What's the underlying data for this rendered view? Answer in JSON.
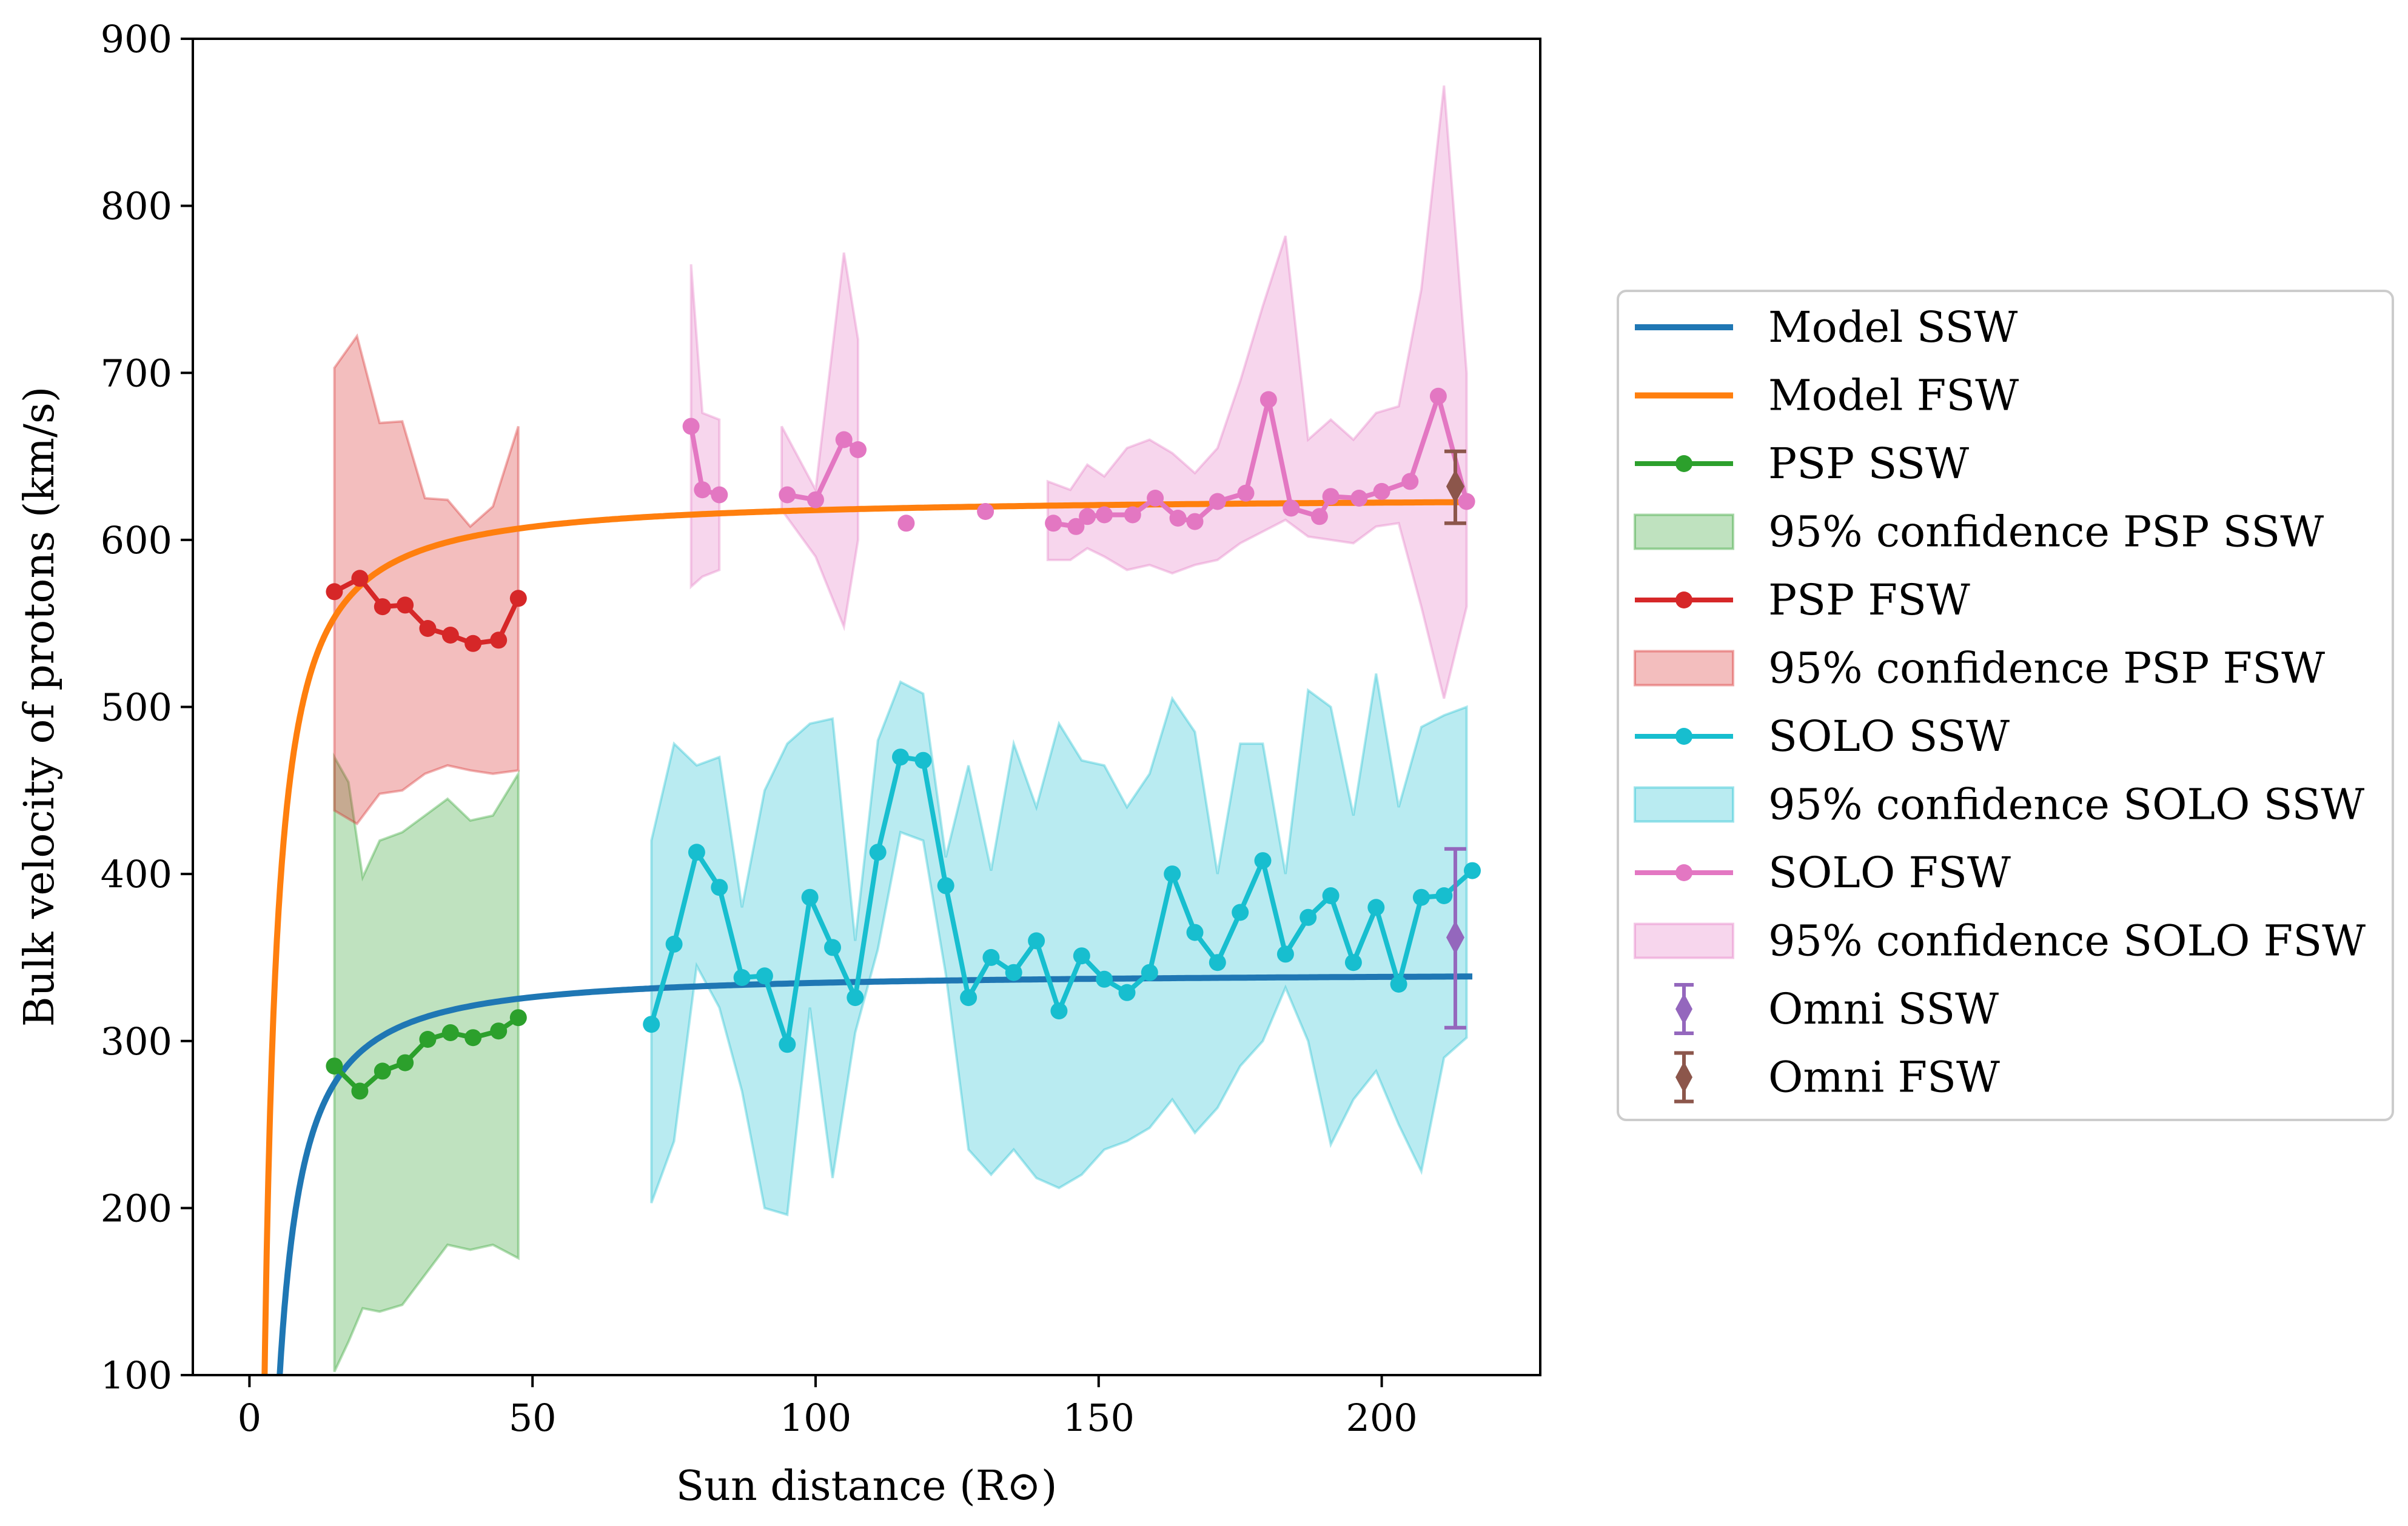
{
  "chart_data": {
    "type": "line",
    "title": "",
    "xlabel": "Sun distance (R⊙)",
    "ylabel": "Bulk velocity of protons (km/s)",
    "xlim": [
      -10,
      228
    ],
    "ylim": [
      100,
      900
    ],
    "xticks": [
      0,
      50,
      100,
      150,
      200
    ],
    "yticks": [
      100,
      200,
      300,
      400,
      500,
      600,
      700,
      800,
      900
    ],
    "grid": false,
    "legend_position": "outside-right",
    "legend": [
      {
        "label": "Model SSW",
        "kind": "line",
        "color": "#1f77b4"
      },
      {
        "label": "Model FSW",
        "kind": "line",
        "color": "#ff7f0e"
      },
      {
        "label": "PSP SSW",
        "kind": "marker-line",
        "color": "#2ca02c"
      },
      {
        "label": "95% confidence PSP SSW",
        "kind": "patch",
        "color": "#2ca02c"
      },
      {
        "label": "PSP FSW",
        "kind": "marker-line",
        "color": "#d62728"
      },
      {
        "label": "95% confidence PSP FSW",
        "kind": "patch",
        "color": "#d62728"
      },
      {
        "label": "SOLO SSW",
        "kind": "marker-line",
        "color": "#17becf"
      },
      {
        "label": "95% confidence SOLO SSW",
        "kind": "patch",
        "color": "#17becf"
      },
      {
        "label": "SOLO FSW",
        "kind": "marker-line",
        "color": "#e377c2"
      },
      {
        "label": "95% confidence SOLO FSW",
        "kind": "patch",
        "color": "#e377c2"
      },
      {
        "label": "Omni SSW",
        "kind": "errorbar",
        "color": "#9467bd"
      },
      {
        "label": "Omni FSW",
        "kind": "errorbar",
        "color": "#8c564b"
      }
    ],
    "models": [
      {
        "name": "Model SSW",
        "color": "#1f77b4",
        "vinf": 341,
        "r0": 4.05,
        "k": 1.25,
        "xmax": 216
      },
      {
        "name": "Model FSW",
        "color": "#ff7f0e",
        "vinf": 626,
        "r0": 2.3,
        "k": 1.15,
        "xmax": 216
      }
    ],
    "bands": [
      {
        "name": "95% confidence PSP SSW",
        "color": "#2ca02c",
        "segments": [
          {
            "x": [
              15,
              17.5,
              20,
              23,
              27,
              31,
              35,
              39,
              43,
              47.5
            ],
            "lower": [
              102,
              120,
              140,
              138,
              142,
              160,
              178,
              175,
              178,
              170
            ],
            "upper": [
              470,
              455,
              398,
              420,
              425,
              435,
              445,
              432,
              435,
              460
            ]
          }
        ]
      },
      {
        "name": "95% confidence PSP FSW",
        "color": "#d62728",
        "segments": [
          {
            "x": [
              15,
              19,
              23,
              27,
              31,
              35,
              39,
              43,
              47.5
            ],
            "lower": [
              438,
              430,
              448,
              450,
              460,
              465,
              462,
              460,
              462
            ],
            "upper": [
              703,
              722,
              670,
              671,
              625,
              624,
              608,
              620,
              668
            ]
          }
        ]
      },
      {
        "name": "95% confidence SOLO SSW",
        "color": "#17becf",
        "segments": [
          {
            "x": [
              71,
              75,
              79,
              83,
              87,
              91,
              95,
              99,
              103,
              107,
              111,
              115,
              119,
              123,
              127,
              131,
              135,
              139,
              143,
              147,
              151,
              155,
              159,
              163,
              167,
              171,
              175,
              179,
              183,
              187,
              191,
              195,
              199,
              203,
              207,
              211,
              215
            ],
            "lower": [
              203,
              240,
              345,
              320,
              270,
              200,
              196,
              320,
              218,
              305,
              355,
              425,
              420,
              340,
              235,
              220,
              235,
              218,
              212,
              220,
              235,
              240,
              248,
              265,
              245,
              260,
              285,
              300,
              332,
              300,
              238,
              265,
              282,
              250,
              222,
              290,
              302
            ],
            "upper": [
              420,
              478,
              465,
              470,
              380,
              450,
              478,
              490,
              493,
              360,
              480,
              515,
              508,
              410,
              465,
              402,
              478,
              440,
              490,
              468,
              465,
              440,
              460,
              505,
              485,
              400,
              478,
              478,
              400,
              510,
              500,
              435,
              520,
              440,
              488,
              495,
              500
            ]
          }
        ]
      },
      {
        "name": "95% confidence SOLO FSW",
        "color": "#e377c2",
        "segments": [
          {
            "x": [
              78,
              80,
              83
            ],
            "lower": [
              572,
              578,
              582
            ],
            "upper": [
              765,
              676,
              672
            ]
          },
          {
            "x": [
              94,
              100,
              105,
              107.5
            ],
            "lower": [
              618,
              590,
              548,
              600
            ],
            "upper": [
              668,
              630,
              772,
              720
            ]
          },
          {
            "x": [
              141,
              145,
              148,
              151,
              155,
              159,
              163,
              167,
              171,
              175,
              179,
              183,
              187,
              191,
              195,
              199,
              203,
              207,
              211,
              215
            ],
            "lower": [
              588,
              588,
              595,
              590,
              582,
              585,
              580,
              585,
              588,
              598,
              605,
              612,
              602,
              600,
              598,
              608,
              610,
              560,
              505,
              560
            ],
            "upper": [
              635,
              630,
              645,
              638,
              655,
              660,
              652,
              640,
              655,
              695,
              740,
              782,
              660,
              672,
              660,
              676,
              680,
              750,
              872,
              700
            ]
          }
        ]
      }
    ],
    "series": [
      {
        "name": "PSP SSW",
        "color": "#2ca02c",
        "x": [
          15,
          19.5,
          23.5,
          27.5,
          31.5,
          35.5,
          39.5,
          44,
          47.5
        ],
        "y": [
          285,
          270,
          282,
          287,
          301,
          305,
          302,
          306,
          314
        ]
      },
      {
        "name": "PSP FSW",
        "color": "#d62728",
        "x": [
          15,
          19.5,
          23.5,
          27.5,
          31.5,
          35.5,
          39.5,
          44,
          47.5
        ],
        "y": [
          569,
          577,
          560,
          561,
          547,
          543,
          538,
          540,
          565
        ]
      },
      {
        "name": "SOLO SSW",
        "color": "#17becf",
        "x": [
          71,
          75,
          79,
          83,
          87,
          91,
          95,
          99,
          103,
          107,
          111,
          115,
          119,
          123,
          127,
          131,
          135,
          139,
          143,
          147,
          151,
          155,
          159,
          163,
          167,
          171,
          175,
          179,
          183,
          187,
          191,
          195,
          199,
          203,
          207,
          211,
          216
        ],
        "y": [
          310,
          358,
          413,
          392,
          338,
          339,
          298,
          386,
          356,
          326,
          413,
          470,
          468,
          393,
          326,
          350,
          341,
          360,
          318,
          351,
          337,
          329,
          341,
          400,
          365,
          347,
          377,
          408,
          352,
          374,
          387,
          347,
          380,
          334,
          386,
          387,
          402
        ]
      },
      {
        "name": "SOLO FSW",
        "color": "#e377c2",
        "segments": [
          {
            "x": [
              78,
              80,
              83
            ],
            "y": [
              668,
              630,
              627
            ]
          },
          {
            "x": [
              95,
              100,
              105,
              107.5
            ],
            "y": [
              627,
              624,
              660,
              654
            ]
          },
          {
            "x": [
              116
            ],
            "y": [
              610
            ]
          },
          {
            "x": [
              130
            ],
            "y": [
              617
            ]
          },
          {
            "x": [
              142,
              146,
              148,
              151,
              156,
              160,
              164,
              167,
              171,
              176,
              180,
              184,
              189,
              191,
              196,
              200,
              205,
              210,
              215
            ],
            "y": [
              610,
              608,
              614,
              615,
              615,
              625,
              613,
              611,
              623,
              628,
              684,
              619,
              614,
              626,
              625,
              629,
              635,
              686,
              623
            ]
          }
        ]
      }
    ],
    "errorbars": [
      {
        "name": "Omni SSW",
        "color": "#9467bd",
        "x": 213,
        "y": 362,
        "lower": 308,
        "upper": 415
      },
      {
        "name": "Omni FSW",
        "color": "#8c564b",
        "x": 213,
        "y": 632,
        "lower": 610,
        "upper": 653
      }
    ]
  }
}
